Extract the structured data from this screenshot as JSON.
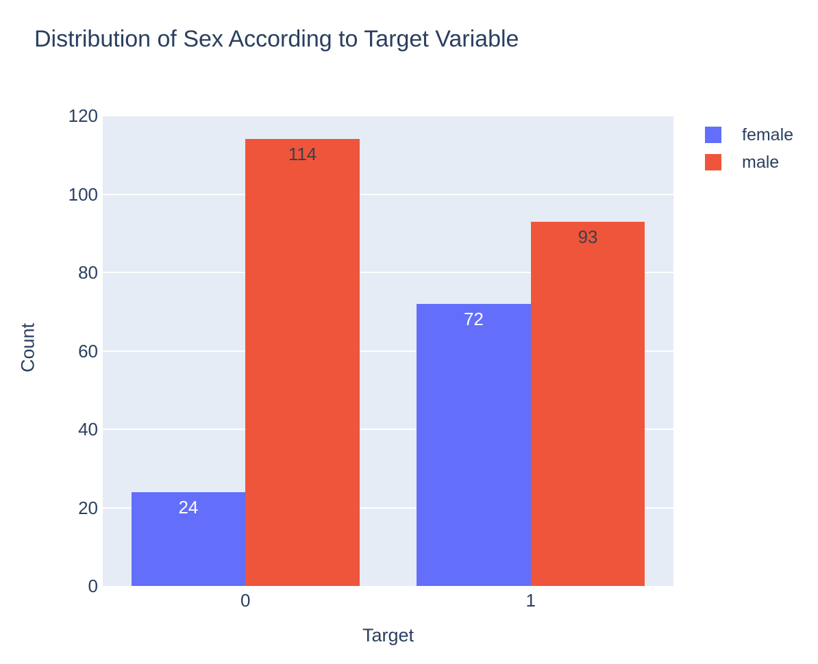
{
  "chart_data": {
    "type": "bar",
    "title": "Distribution of Sex According to Target Variable",
    "xlabel": "Target",
    "ylabel": "Count",
    "categories": [
      "0",
      "1"
    ],
    "series": [
      {
        "name": "female",
        "color": "#636EFA",
        "label_color": "#ffffff",
        "values": [
          24,
          72
        ]
      },
      {
        "name": "male",
        "color": "#EF553B",
        "label_color": "#3b4147",
        "values": [
          114,
          93
        ]
      }
    ],
    "ylim": [
      0,
      120
    ],
    "yticks": [
      0,
      20,
      40,
      60,
      80,
      100,
      120
    ],
    "grid": true,
    "legend_position": "top-right",
    "bar_value_labels": "inside-top",
    "bar_mode": "group"
  },
  "colors": {
    "plot_background": "#E5ECF6",
    "paper_background": "#FFFFFF",
    "gridline": "#FFFFFF",
    "text": "#2A3F5F"
  }
}
